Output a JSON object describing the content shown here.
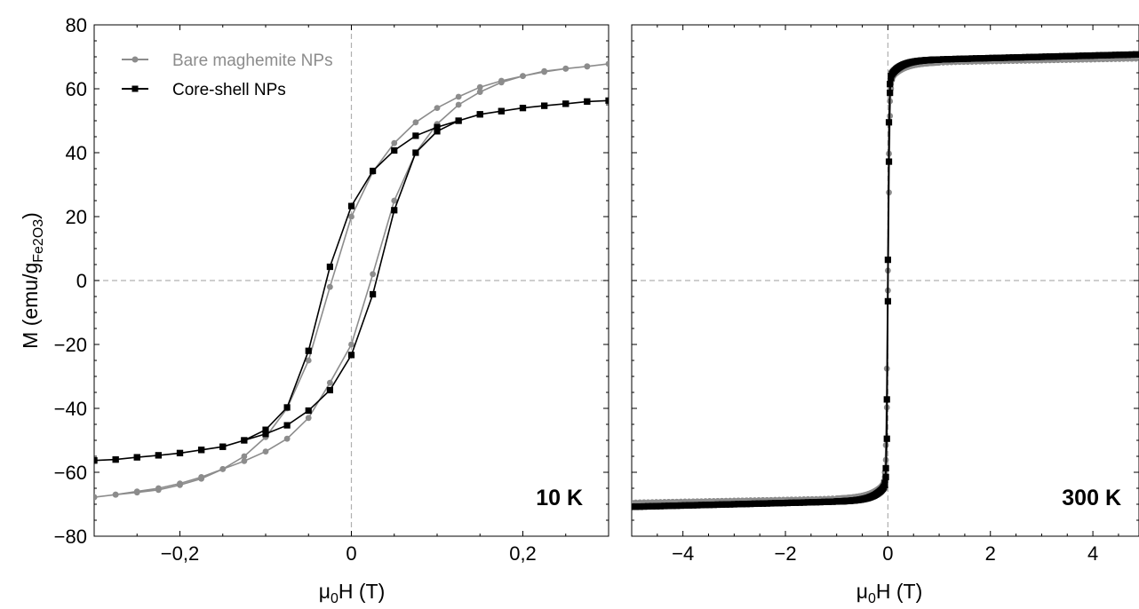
{
  "colors": {
    "bare": "#8c8c8c",
    "core_shell": "#000000",
    "zero_line": "#b0b0b0"
  },
  "y_axis_label": {
    "prefix": "M (emu/g",
    "subscript": "Fe2O3",
    "suffix": ")"
  },
  "chart_data": [
    {
      "type": "line",
      "panel_label": "10 K",
      "xlabel": {
        "main": "μ",
        "sub": "0",
        "rest": "H (T)"
      },
      "xlim": [
        -0.3,
        0.3
      ],
      "ylim": [
        -80,
        80
      ],
      "x_ticks": [
        -0.2,
        0,
        0.2
      ],
      "x_tick_labels": [
        "−0,2",
        "0",
        "0,2"
      ],
      "y_ticks": [
        -80,
        -60,
        -40,
        -20,
        0,
        20,
        40,
        60,
        80
      ],
      "y_tick_labels": [
        "−80",
        "−60",
        "−40",
        "−20",
        "0",
        "20",
        "40",
        "60",
        "80"
      ],
      "legend": {
        "position": "top-left",
        "entries": [
          "Bare maghemite NPs",
          "Core-shell NPs"
        ]
      },
      "series": [
        {
          "name": "Bare maghemite NPs",
          "marker": "circle",
          "x": [
            -0.3,
            -0.275,
            -0.25,
            -0.225,
            -0.2,
            -0.175,
            -0.15,
            -0.125,
            -0.1,
            -0.075,
            -0.05,
            -0.025,
            0,
            0.025,
            0.05,
            0.075,
            0.1,
            0.125,
            0.15,
            0.175,
            0.2,
            0.225,
            0.25,
            0.275,
            0.3,
            0.275,
            0.25,
            0.225,
            0.2,
            0.175,
            0.15,
            0.125,
            0.1,
            0.075,
            0.05,
            0.025,
            0,
            -0.025,
            -0.05,
            -0.075,
            -0.1,
            -0.125,
            -0.15,
            -0.175,
            -0.2,
            -0.225,
            -0.25,
            -0.275,
            -0.3
          ],
          "y": [
            -67.8,
            -67,
            -66,
            -65,
            -63.5,
            -61.5,
            -59,
            -56.5,
            -53.5,
            -49.5,
            -43,
            -32,
            -20,
            2,
            25,
            40,
            49,
            55,
            59,
            62,
            64,
            65.5,
            66.3,
            67,
            67.8,
            67,
            66.3,
            65.3,
            64,
            62.5,
            60.5,
            57.5,
            54,
            49.5,
            43,
            34,
            20,
            -2,
            -25,
            -40,
            -49,
            -55,
            -59,
            -62,
            -64,
            -65.5,
            -66.3,
            -67,
            -67.8
          ]
        },
        {
          "name": "Core-shell NPs",
          "marker": "square",
          "x": [
            -0.3,
            -0.275,
            -0.25,
            -0.225,
            -0.2,
            -0.175,
            -0.15,
            -0.125,
            -0.1,
            -0.075,
            -0.05,
            -0.025,
            0,
            0.025,
            0.05,
            0.075,
            0.1,
            0.125,
            0.15,
            0.175,
            0.2,
            0.225,
            0.25,
            0.275,
            0.3,
            0.275,
            0.25,
            0.225,
            0.2,
            0.175,
            0.15,
            0.125,
            0.1,
            0.075,
            0.05,
            0.025,
            0,
            -0.025,
            -0.05,
            -0.075,
            -0.1,
            -0.125,
            -0.15,
            -0.175,
            -0.2,
            -0.225,
            -0.25,
            -0.275,
            -0.3
          ],
          "y": [
            -56.3,
            -56,
            -55.3,
            -54.7,
            -54,
            -53,
            -52,
            -50,
            -48,
            -45.3,
            -40.7,
            -34.3,
            -23.3,
            -4.3,
            22,
            40,
            46.7,
            50,
            52,
            53,
            54,
            54.7,
            55.3,
            56,
            56.3,
            56,
            55.3,
            54.7,
            54,
            53,
            52,
            50,
            48,
            45.3,
            40.7,
            34.3,
            23.3,
            4.3,
            -22,
            -39.7,
            -46.7,
            -50,
            -52,
            -53,
            -54,
            -54.7,
            -55.3,
            -56,
            -56.3
          ]
        }
      ]
    },
    {
      "type": "line",
      "panel_label": "300 K",
      "xlabel": {
        "main": "μ",
        "sub": "0",
        "rest": "H (T)"
      },
      "xlim": [
        -5,
        4.9
      ],
      "ylim": [
        -80,
        80
      ],
      "x_ticks": [
        -4,
        -2,
        0,
        2,
        4
      ],
      "x_tick_labels": [
        "−4",
        "−2",
        "0",
        "2",
        "4"
      ],
      "y_ticks": [
        -80,
        -60,
        -40,
        -20,
        0,
        20,
        40,
        60,
        80
      ],
      "series": [
        {
          "name": "Bare maghemite NPs",
          "marker": "circle",
          "Ms": 69.5,
          "slope": 0.3,
          "a": 0.03,
          "b": 0.25
        },
        {
          "name": "Core-shell NPs",
          "marker": "square",
          "Ms": 70.8,
          "slope": 0.4,
          "a": 0.022,
          "b": 0.21
        }
      ]
    }
  ]
}
